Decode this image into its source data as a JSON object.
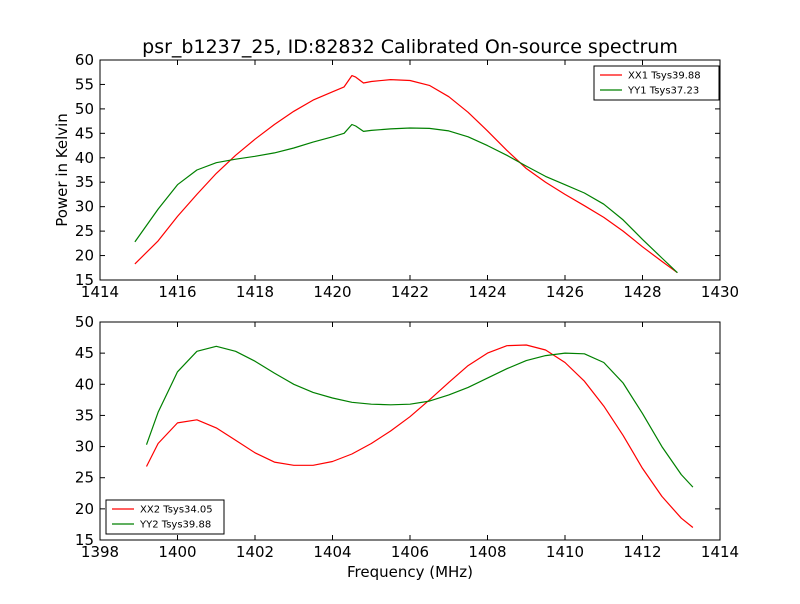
{
  "figure": {
    "title": "psr_b1237_25, ID:82832 Calibrated On-source spectrum",
    "ylabel": "Power in Kelvin",
    "xlabel": "Frequency (MHz)"
  },
  "chart_data": [
    {
      "type": "line",
      "title": "psr_b1237_25, ID:82832 Calibrated On-source spectrum",
      "ylabel": "Power in Kelvin",
      "xlabel": "",
      "xlim": [
        1414,
        1430
      ],
      "ylim": [
        15,
        60
      ],
      "xticks": [
        1414,
        1416,
        1418,
        1420,
        1422,
        1424,
        1426,
        1428,
        1430
      ],
      "yticks": [
        15,
        20,
        25,
        30,
        35,
        40,
        45,
        50,
        55,
        60
      ],
      "legend": "top-right",
      "series": [
        {
          "name": "XX1 Tsys39.88",
          "color": "#ff0000",
          "x": [
            1414.9,
            1415.5,
            1416.0,
            1416.5,
            1417.0,
            1417.5,
            1418.0,
            1418.5,
            1419.0,
            1419.5,
            1420.0,
            1420.3,
            1420.5,
            1420.6,
            1420.8,
            1421.0,
            1421.5,
            1422.0,
            1422.5,
            1423.0,
            1423.5,
            1424.0,
            1424.5,
            1425.0,
            1425.5,
            1426.0,
            1426.5,
            1427.0,
            1427.5,
            1428.0,
            1428.5,
            1428.9
          ],
          "y": [
            18.3,
            23.0,
            28.0,
            32.5,
            36.8,
            40.5,
            43.8,
            46.8,
            49.5,
            51.8,
            53.5,
            54.5,
            56.8,
            56.5,
            55.3,
            55.6,
            56.0,
            55.8,
            54.8,
            52.5,
            49.3,
            45.5,
            41.5,
            37.8,
            35.0,
            32.5,
            30.2,
            27.8,
            25.0,
            21.8,
            18.8,
            16.5
          ]
        },
        {
          "name": "YY1 Tsys37.23",
          "color": "#008000",
          "x": [
            1414.9,
            1415.5,
            1416.0,
            1416.5,
            1417.0,
            1417.5,
            1418.0,
            1418.5,
            1419.0,
            1419.5,
            1420.0,
            1420.3,
            1420.5,
            1420.6,
            1420.8,
            1421.0,
            1421.5,
            1422.0,
            1422.5,
            1423.0,
            1423.5,
            1424.0,
            1424.5,
            1425.0,
            1425.5,
            1426.0,
            1426.5,
            1427.0,
            1427.5,
            1428.0,
            1428.5,
            1428.9
          ],
          "y": [
            22.8,
            29.5,
            34.5,
            37.5,
            39.0,
            39.7,
            40.3,
            41.0,
            42.0,
            43.2,
            44.3,
            45.0,
            46.8,
            46.5,
            45.4,
            45.6,
            45.9,
            46.1,
            46.0,
            45.5,
            44.3,
            42.5,
            40.5,
            38.3,
            36.2,
            34.5,
            32.8,
            30.5,
            27.3,
            23.3,
            19.5,
            16.5
          ]
        }
      ]
    },
    {
      "type": "line",
      "title": "",
      "ylabel": "",
      "xlabel": "Frequency (MHz)",
      "xlim": [
        1398,
        1414
      ],
      "ylim": [
        15,
        50
      ],
      "xticks": [
        1398,
        1400,
        1402,
        1404,
        1406,
        1408,
        1410,
        1412,
        1414
      ],
      "yticks": [
        15,
        20,
        25,
        30,
        35,
        40,
        45,
        50
      ],
      "legend": "bottom-left",
      "series": [
        {
          "name": "XX2 Tsys34.05",
          "color": "#ff0000",
          "x": [
            1399.2,
            1399.5,
            1400.0,
            1400.5,
            1401.0,
            1401.5,
            1402.0,
            1402.5,
            1403.0,
            1403.5,
            1404.0,
            1404.5,
            1405.0,
            1405.5,
            1406.0,
            1406.5,
            1407.0,
            1407.5,
            1408.0,
            1408.5,
            1409.0,
            1409.5,
            1410.0,
            1410.5,
            1411.0,
            1411.5,
            1412.0,
            1412.5,
            1413.0,
            1413.3
          ],
          "y": [
            26.8,
            30.5,
            33.8,
            34.3,
            33.0,
            31.0,
            29.0,
            27.5,
            27.0,
            27.0,
            27.6,
            28.8,
            30.5,
            32.5,
            34.8,
            37.5,
            40.3,
            43.0,
            45.0,
            46.2,
            46.3,
            45.5,
            43.5,
            40.5,
            36.5,
            31.8,
            26.5,
            22.0,
            18.5,
            17.0
          ]
        },
        {
          "name": "YY2 Tsys39.88",
          "color": "#008000",
          "x": [
            1399.2,
            1399.5,
            1400.0,
            1400.5,
            1401.0,
            1401.5,
            1402.0,
            1402.5,
            1403.0,
            1403.5,
            1404.0,
            1404.5,
            1405.0,
            1405.5,
            1406.0,
            1406.5,
            1407.0,
            1407.5,
            1408.0,
            1408.5,
            1409.0,
            1409.5,
            1410.0,
            1410.5,
            1411.0,
            1411.5,
            1412.0,
            1412.5,
            1413.0,
            1413.3
          ],
          "y": [
            30.3,
            35.5,
            42.0,
            45.3,
            46.1,
            45.3,
            43.7,
            41.8,
            40.0,
            38.7,
            37.8,
            37.1,
            36.8,
            36.7,
            36.8,
            37.3,
            38.3,
            39.5,
            41.0,
            42.5,
            43.8,
            44.6,
            45.0,
            44.9,
            43.5,
            40.2,
            35.3,
            30.0,
            25.5,
            23.5
          ]
        }
      ]
    }
  ]
}
